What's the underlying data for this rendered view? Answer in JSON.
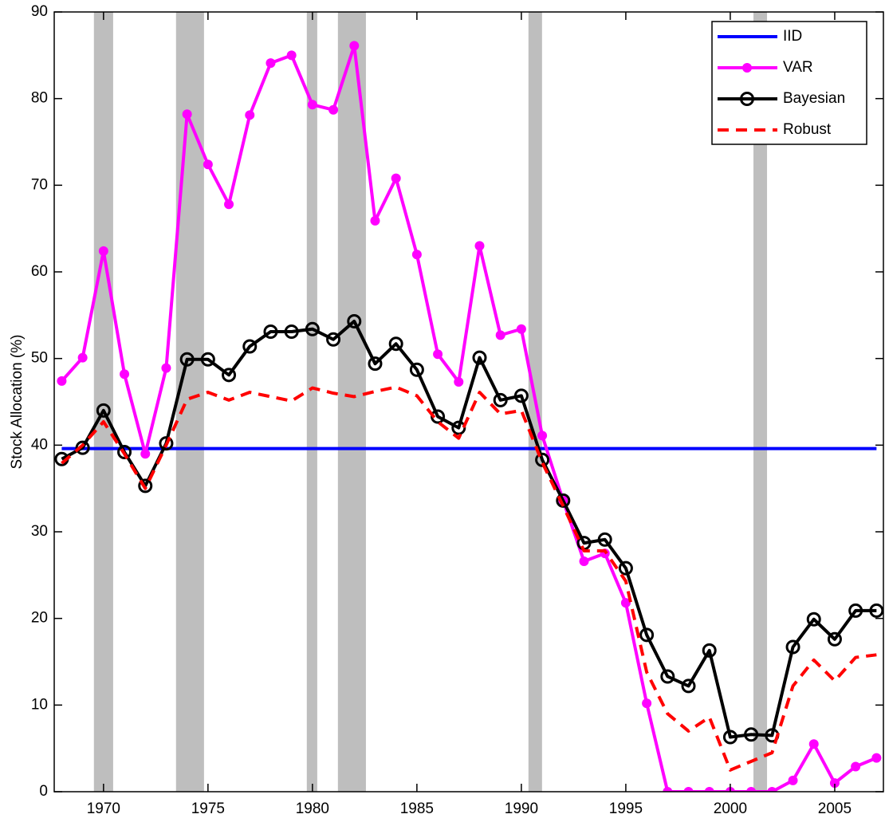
{
  "chart_data": {
    "type": "line",
    "y_label": "Stock Allocation (%)",
    "x": [
      1968,
      1969,
      1970,
      1971,
      1972,
      1973,
      1974,
      1975,
      1976,
      1977,
      1978,
      1979,
      1980,
      1981,
      1982,
      1983,
      1984,
      1985,
      1986,
      1987,
      1988,
      1989,
      1990,
      1991,
      1992,
      1993,
      1994,
      1995,
      1996,
      1997,
      1998,
      1999,
      2000,
      2001,
      2002,
      2003,
      2004,
      2005,
      2006,
      2007
    ],
    "series": [
      {
        "name": "IID",
        "color": "#0000ff",
        "marker": null,
        "dashed": false,
        "values": [
          39.6,
          39.6,
          39.6,
          39.6,
          39.6,
          39.6,
          39.6,
          39.6,
          39.6,
          39.6,
          39.6,
          39.6,
          39.6,
          39.6,
          39.6,
          39.6,
          39.6,
          39.6,
          39.6,
          39.6,
          39.6,
          39.6,
          39.6,
          39.6,
          39.6,
          39.6,
          39.6,
          39.6,
          39.6,
          39.6,
          39.6,
          39.6,
          39.6,
          39.6,
          39.6,
          39.6,
          39.6,
          39.6,
          39.6,
          39.6
        ]
      },
      {
        "name": "VAR",
        "color": "#ff00ff",
        "marker": "dot",
        "dashed": false,
        "values": [
          47.4,
          50.1,
          62.4,
          48.2,
          39.0,
          48.9,
          78.2,
          72.4,
          67.8,
          78.1,
          84.1,
          85.0,
          79.3,
          78.7,
          86.1,
          65.9,
          70.8,
          62.0,
          50.5,
          47.3,
          63.0,
          52.7,
          53.4,
          41.1,
          33.6,
          26.6,
          27.5,
          21.8,
          10.2,
          0,
          0,
          0,
          0,
          0,
          0,
          1.3,
          5.5,
          1.0,
          2.9,
          3.9
        ]
      },
      {
        "name": "Bayesian",
        "color": "#000000",
        "marker": "circle",
        "dashed": false,
        "values": [
          38.4,
          39.7,
          44.0,
          39.2,
          35.3,
          40.2,
          49.9,
          49.9,
          48.1,
          51.4,
          53.1,
          53.1,
          53.4,
          52.2,
          54.3,
          49.4,
          51.7,
          48.7,
          43.3,
          42.0,
          50.1,
          45.2,
          45.7,
          38.3,
          33.6,
          28.7,
          29.1,
          25.8,
          18.1,
          13.3,
          12.2,
          16.3,
          6.3,
          6.6,
          6.5,
          16.7,
          19.9,
          17.6,
          20.9,
          20.9
        ]
      },
      {
        "name": "Robust",
        "color": "#ff0000",
        "marker": null,
        "dashed": true,
        "values": [
          37.9,
          40.0,
          42.7,
          39.0,
          35.0,
          40.0,
          45.3,
          46.1,
          45.2,
          46.1,
          45.6,
          45.1,
          46.6,
          46.0,
          45.6,
          46.2,
          46.7,
          45.7,
          42.7,
          40.8,
          46.1,
          43.6,
          44.0,
          38.0,
          33.0,
          27.8,
          27.8,
          24.3,
          13.8,
          9.0,
          7.0,
          8.6,
          2.5,
          3.5,
          4.5,
          12.2,
          15.2,
          12.8,
          15.5,
          15.8
        ]
      }
    ],
    "shaded_regions": [
      [
        1969.54,
        1970.46
      ],
      [
        1973.47,
        1974.81
      ],
      [
        1979.73,
        1980.23
      ],
      [
        1981.22,
        1982.56
      ],
      [
        1990.34,
        1990.99
      ],
      [
        2001.11,
        2001.76
      ]
    ],
    "shaded_color": "#bebebe",
    "xlim": [
      1967.64,
      2007.33
    ],
    "xticks": [
      1970,
      1975,
      1980,
      1985,
      1990,
      1995,
      2000,
      2005
    ],
    "ylim": [
      0,
      90
    ],
    "yticks": [
      0,
      10,
      20,
      30,
      40,
      50,
      60,
      70,
      80,
      90
    ],
    "legend": "top-right"
  }
}
